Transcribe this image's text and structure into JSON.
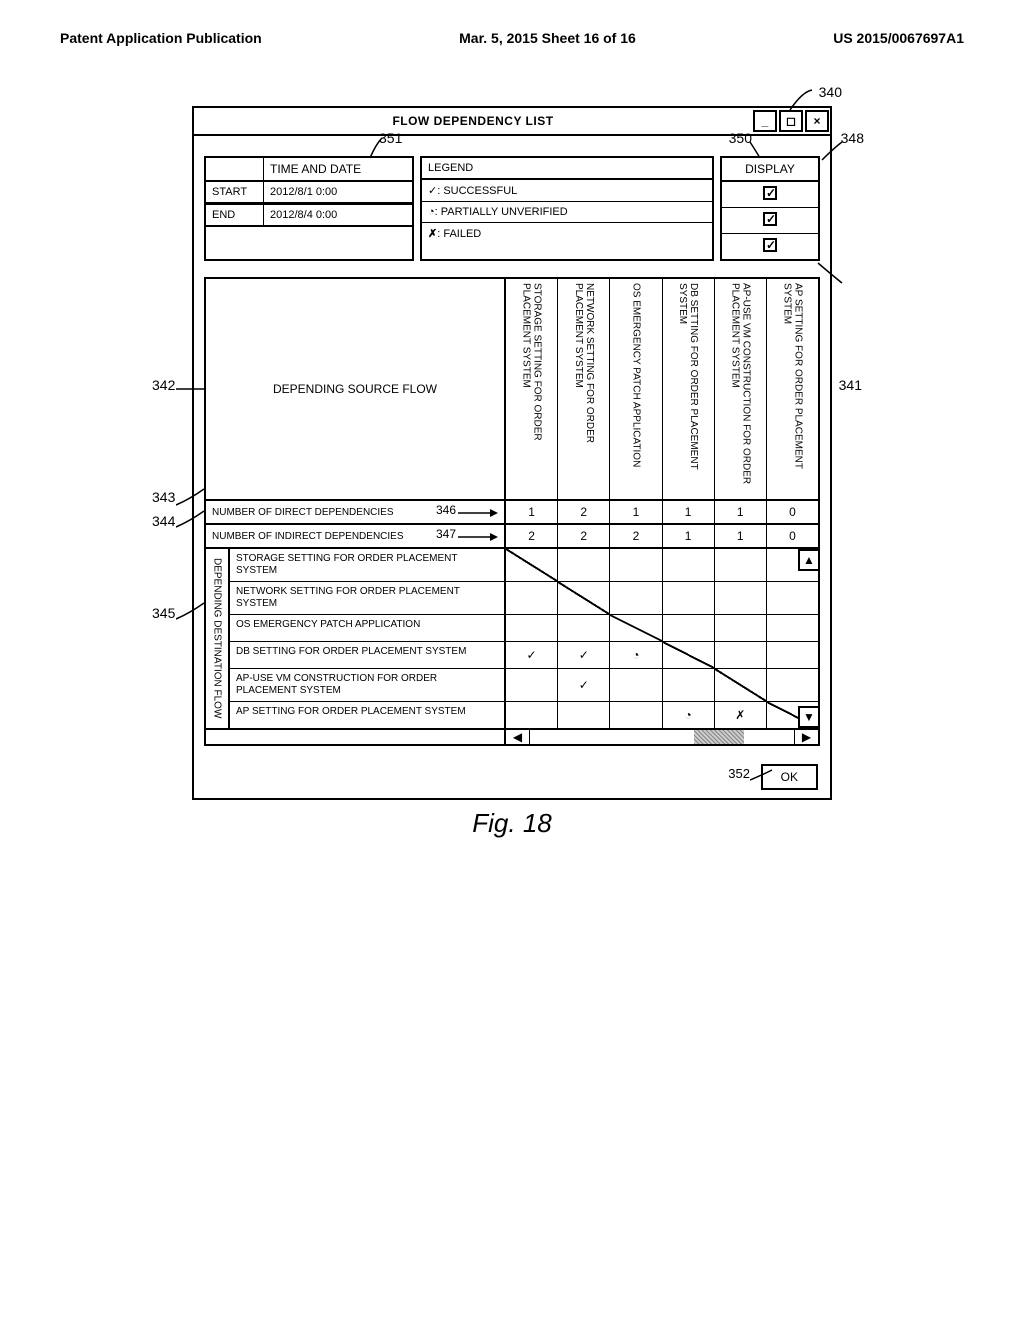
{
  "page_header": {
    "left": "Patent Application Publication",
    "center": "Mar. 5, 2015  Sheet 16 of 16",
    "right": "US 2015/0067697A1"
  },
  "window": {
    "title": "FLOW DEPENDENCY LIST",
    "buttons": {
      "min": "_",
      "max": "◻",
      "close": "×"
    }
  },
  "time_date": {
    "header": "TIME AND DATE",
    "rows": [
      {
        "label": "START",
        "value": "2012/8/1 0:00"
      },
      {
        "label": "END",
        "value": "2012/8/4 0:00"
      }
    ]
  },
  "legend": {
    "header": "LEGEND",
    "items": [
      {
        "sym": "✓",
        "text": ": SUCCESSFUL"
      },
      {
        "sym": "◔",
        "text": ":  PARTIALLY UNVERIFIED"
      },
      {
        "sym": "✗",
        "text": ": FAILED"
      }
    ]
  },
  "display": {
    "header": "DISPLAY",
    "checked": [
      true,
      true,
      true
    ]
  },
  "source_flow_label": "DEPENDING SOURCE FLOW",
  "column_headers": [
    "STORAGE SETTING FOR\nORDER PLACEMENT SYSTEM",
    "NETWORK SETTING FOR\nORDER PLACEMENT SYSTEM",
    "OS EMERGENCY PATCH APPLICATION",
    "DB SETTING FOR\nORDER PLACEMENT SYSTEM",
    "AP-USE VM CONSTRUCTION FOR\nORDER PLACEMENT SYSTEM",
    "AP SETTING FOR\nORDER PLACEMENT SYSTEM"
  ],
  "dep_rows": [
    {
      "label": "NUMBER OF DIRECT DEPENDENCIES",
      "values": [
        "1",
        "2",
        "1",
        "1",
        "1",
        "0"
      ]
    },
    {
      "label": "NUMBER OF INDIRECT DEPENDENCIES",
      "values": [
        "2",
        "2",
        "2",
        "1",
        "1",
        "0"
      ]
    }
  ],
  "dest_label": "DEPENDING DESTINATION FLOW",
  "dest_rows": [
    {
      "label": "STORAGE SETTING FOR ORDER PLACEMENT SYSTEM",
      "cells": [
        "diag",
        "",
        "",
        "",
        "",
        ""
      ]
    },
    {
      "label": "NETWORK SETTING FOR ORDER PLACEMENT SYSTEM",
      "cells": [
        "",
        "diag",
        "",
        "",
        "",
        ""
      ]
    },
    {
      "label": "OS EMERGENCY PATCH APPLICATION",
      "cells": [
        "",
        "",
        "diag",
        "",
        "",
        ""
      ]
    },
    {
      "label": "DB SETTING FOR ORDER PLACEMENT SYSTEM",
      "cells": [
        "✓",
        "✓",
        "◔",
        "diag",
        "",
        ""
      ]
    },
    {
      "label": "AP-USE VM CONSTRUCTION FOR ORDER PLACEMENT SYSTEM",
      "cells": [
        "",
        "✓",
        "",
        "",
        "diag",
        ""
      ]
    },
    {
      "label": "AP SETTING FOR ORDER PLACEMENT SYSTEM",
      "cells": [
        "",
        "",
        "",
        "◔",
        "✗",
        "diag"
      ]
    }
  ],
  "ok_label": "OK",
  "figure_caption": "Fig. 18",
  "callouts": {
    "c340": "340",
    "c348": "348",
    "c350": "350",
    "c351": "351",
    "c341": "341",
    "c342": "342",
    "c343": "343",
    "c344": "344",
    "c345": "345",
    "c346": "346",
    "c347": "347",
    "c352": "352"
  }
}
